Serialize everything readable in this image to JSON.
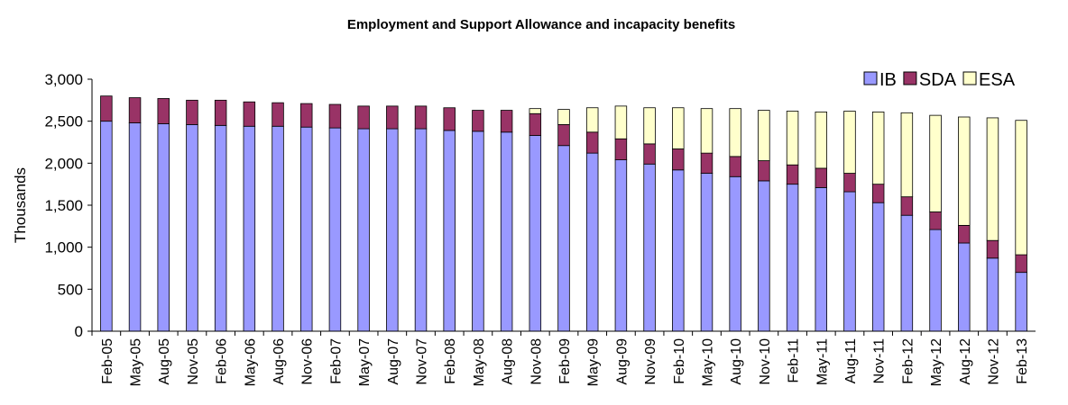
{
  "chart_data": {
    "type": "stacked-bar",
    "title": "Employment and Support Allowance and incapacity benefits",
    "y_label": "Thousands",
    "categories": [
      "Feb-05",
      "May-05",
      "Aug-05",
      "Nov-05",
      "Feb-06",
      "May-06",
      "Aug-06",
      "Nov-06",
      "Feb-07",
      "May-07",
      "Aug-07",
      "Nov-07",
      "Feb-08",
      "May-08",
      "Aug-08",
      "Nov-08",
      "Feb-09",
      "May-09",
      "Aug-09",
      "Nov-09",
      "Feb-10",
      "May-10",
      "Aug-10",
      "Nov-10",
      "Feb-11",
      "May-11",
      "Aug-11",
      "Nov-11",
      "Feb-12",
      "May-12",
      "Aug-12",
      "Nov-12",
      "Feb-13"
    ],
    "series": [
      {
        "name": "IB",
        "color": "#9999ff",
        "values": [
          2500,
          2480,
          2470,
          2460,
          2450,
          2440,
          2440,
          2430,
          2420,
          2410,
          2410,
          2410,
          2390,
          2380,
          2370,
          2330,
          2210,
          2120,
          2040,
          1990,
          1920,
          1880,
          1840,
          1790,
          1750,
          1710,
          1660,
          1530,
          1380,
          1210,
          1050,
          870,
          700
        ]
      },
      {
        "name": "SDA",
        "color": "#993366",
        "values": [
          300,
          300,
          300,
          290,
          300,
          290,
          280,
          280,
          280,
          270,
          270,
          270,
          270,
          250,
          260,
          260,
          250,
          250,
          250,
          240,
          250,
          240,
          240,
          240,
          230,
          230,
          220,
          220,
          220,
          210,
          210,
          210,
          210
        ]
      },
      {
        "name": "ESA",
        "color": "#ffffcc",
        "values": [
          0,
          0,
          0,
          0,
          0,
          0,
          0,
          0,
          0,
          0,
          0,
          0,
          0,
          0,
          0,
          60,
          180,
          290,
          390,
          430,
          490,
          530,
          570,
          600,
          640,
          670,
          740,
          860,
          1000,
          1150,
          1290,
          1460,
          1600
        ]
      }
    ],
    "ylim": [
      0,
      3000
    ],
    "yticks": [
      0,
      500,
      {
        "value": 1000,
        "label": "1,000"
      },
      {
        "value": 1500,
        "label": "1,500"
      },
      {
        "value": 2000,
        "label": "2,000"
      },
      {
        "value": 2500,
        "label": "2,500"
      },
      {
        "value": 3000,
        "label": "3,000"
      }
    ],
    "grid": false,
    "legend": "top-right"
  }
}
